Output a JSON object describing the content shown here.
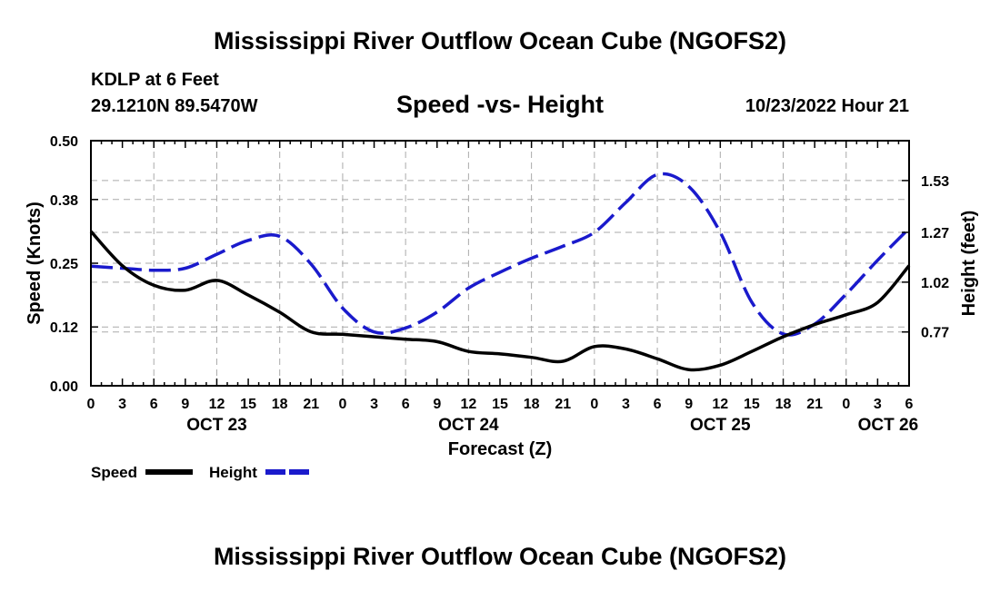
{
  "header": {
    "title": "Mississippi River Outflow Ocean Cube (NGOFS2)",
    "station": "KDLP at 6 Feet",
    "coords": "29.1210N  89.5470W",
    "subtitle": "Speed -vs- Height",
    "datetime": "10/23/2022 Hour 21"
  },
  "footer": {
    "title": "Mississippi River Outflow Ocean Cube (NGOFS2)"
  },
  "chart_data": {
    "type": "line",
    "xlabel": "Forecast (Z)",
    "ylabel": "Speed (Knots)",
    "y2label": "Height (feet)",
    "x_range": [
      0,
      78
    ],
    "ylim": [
      0,
      0.5
    ],
    "y2lim": [
      0.5,
      1.73
    ],
    "grid": true,
    "x_ticks": [
      "0",
      "3",
      "6",
      "9",
      "12",
      "15",
      "18",
      "21",
      "0",
      "3",
      "6",
      "9",
      "12",
      "15",
      "18",
      "21",
      "0",
      "3",
      "6",
      "9",
      "12",
      "15",
      "18",
      "21",
      "0",
      "3",
      "6"
    ],
    "date_labels": [
      {
        "label": "OCT 23",
        "hour": 12
      },
      {
        "label": "OCT 24",
        "hour": 36
      },
      {
        "label": "OCT 25",
        "hour": 60
      },
      {
        "label": "OCT 26",
        "hour": 76
      }
    ],
    "y_ticks": [
      "0.00",
      "0.12",
      "0.25",
      "0.38",
      "0.50"
    ],
    "y2_ticks": [
      "0.77",
      "1.02",
      "1.27",
      "1.53"
    ],
    "legend": [
      "Speed",
      "Height"
    ],
    "series": [
      {
        "name": "Speed",
        "axis": "left",
        "color": "#000000",
        "style": "solid",
        "x": [
          0,
          3,
          6,
          9,
          12,
          15,
          18,
          21,
          24,
          27,
          30,
          33,
          36,
          39,
          42,
          45,
          48,
          51,
          54,
          57,
          60,
          63,
          66,
          69,
          72,
          75,
          78
        ],
        "y": [
          0.315,
          0.245,
          0.205,
          0.195,
          0.215,
          0.185,
          0.15,
          0.11,
          0.105,
          0.1,
          0.095,
          0.09,
          0.07,
          0.065,
          0.058,
          0.05,
          0.08,
          0.075,
          0.055,
          0.033,
          0.042,
          0.07,
          0.1,
          0.125,
          0.145,
          0.17,
          0.245
        ]
      },
      {
        "name": "Height",
        "axis": "right",
        "color": "#1a1acc",
        "style": "dashed",
        "x": [
          0,
          3,
          6,
          9,
          12,
          15,
          18,
          21,
          24,
          27,
          30,
          33,
          36,
          39,
          42,
          45,
          48,
          51,
          54,
          57,
          60,
          63,
          66,
          69,
          72,
          75,
          78
        ],
        "y": [
          1.1,
          1.09,
          1.08,
          1.09,
          1.16,
          1.23,
          1.25,
          1.11,
          0.89,
          0.77,
          0.79,
          0.87,
          0.99,
          1.07,
          1.14,
          1.2,
          1.27,
          1.42,
          1.56,
          1.5,
          1.27,
          0.92,
          0.76,
          0.81,
          0.96,
          1.13,
          1.29
        ]
      }
    ]
  }
}
